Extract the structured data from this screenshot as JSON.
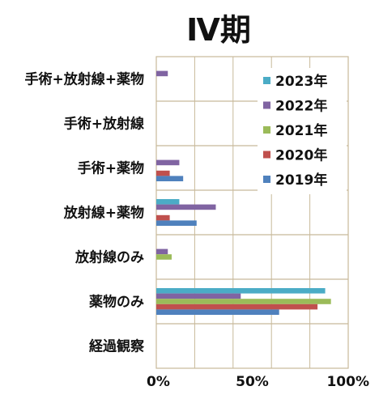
{
  "chart_data": {
    "type": "bar",
    "orientation": "horizontal",
    "title": "Ⅳ期",
    "xlabel": "",
    "ylabel": "",
    "categories": [
      "手術+放射線+薬物",
      "手術+放射線",
      "手術+薬物",
      "放射線+薬物",
      "放射線のみ",
      "薬物のみ",
      "経過観察"
    ],
    "xlim": [
      0,
      100
    ],
    "x_ticks": [
      "0%",
      "50%",
      "100%"
    ],
    "grid": true,
    "legend_position": "top-right",
    "series": [
      {
        "name": "2023年",
        "color": "#4BACC6",
        "values": [
          0,
          0,
          0,
          12,
          0,
          88,
          0
        ]
      },
      {
        "name": "2022年",
        "color": "#8064A2",
        "values": [
          6,
          0,
          12,
          31,
          6,
          44,
          0
        ]
      },
      {
        "name": "2021年",
        "color": "#9BBB59",
        "values": [
          0,
          0,
          0,
          0,
          8,
          91,
          0
        ]
      },
      {
        "name": "2020年",
        "color": "#C0504D",
        "values": [
          0,
          0,
          7,
          7,
          0,
          84,
          0
        ]
      },
      {
        "name": "2019年",
        "color": "#4F81BD",
        "values": [
          0,
          0,
          14,
          21,
          0,
          64,
          0
        ]
      }
    ]
  }
}
